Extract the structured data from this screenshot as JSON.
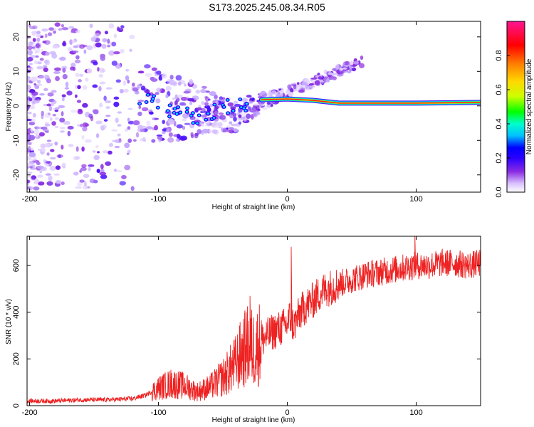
{
  "figure_title": "S173.2025.245.08.34.R05",
  "chart_data": [
    {
      "id": "spectrogram",
      "type": "heatmap",
      "xlabel": "Height of straight line (km)",
      "ylabel": "Frequency (Hz)",
      "xlim": [
        -202,
        150
      ],
      "ylim": [
        -25,
        24.5
      ],
      "xticks": [
        -200,
        -100,
        0,
        100
      ],
      "yticks": [
        -20,
        -10,
        0,
        10,
        20
      ],
      "grid": false,
      "ridge": {
        "description_points_x": [
          -20,
          0,
          20,
          40,
          60,
          100,
          150
        ],
        "description_points_y": [
          1.8,
          2.0,
          1.6,
          0.8,
          0.8,
          0.8,
          1.0
        ]
      },
      "colorbar": {
        "label": "Normalized spectral amplitude",
        "range": [
          0,
          1
        ],
        "ticks": [
          "0.0",
          "0.2",
          "0.4",
          "0.6",
          "0.8"
        ],
        "tick_values": [
          0.0,
          0.2,
          0.4,
          0.6,
          0.8
        ],
        "colors": [
          "#ffffff",
          "#d9c2ff",
          "#8a2be2",
          "#2a00ff",
          "#0000ff",
          "#00bfff",
          "#00ffcc",
          "#00ff00",
          "#ccff00",
          "#ffd700",
          "#ff7f00",
          "#ff0000",
          "#ff1493"
        ]
      }
    },
    {
      "id": "snr",
      "type": "line",
      "xlabel": "Height of straight line (km)",
      "ylabel": "SNR (10 * v/v)",
      "xlim": [
        -202,
        150
      ],
      "ylim": [
        0,
        725
      ],
      "xticks": [
        -200,
        -100,
        0,
        100
      ],
      "yticks": [
        0,
        200,
        400,
        600
      ],
      "grid": false,
      "series": [
        {
          "name": "SNR",
          "color": "#ee2222",
          "x": [
            -202,
            -180,
            -160,
            -140,
            -120,
            -110,
            -100,
            -90,
            -80,
            -70,
            -60,
            -50,
            -40,
            -35,
            -30,
            -25,
            -20,
            -15,
            -10,
            -5,
            0,
            2,
            5,
            10,
            15,
            20,
            25,
            30,
            40,
            50,
            60,
            70,
            80,
            90,
            100,
            110,
            120,
            130,
            140,
            150
          ],
          "y": [
            20,
            20,
            25,
            25,
            30,
            45,
            75,
            95,
            85,
            60,
            80,
            120,
            180,
            230,
            260,
            240,
            280,
            300,
            320,
            330,
            350,
            380,
            340,
            400,
            430,
            450,
            480,
            500,
            520,
            540,
            560,
            570,
            580,
            590,
            600,
            600,
            610,
            610,
            600,
            610
          ]
        }
      ],
      "annotations": {
        "spikes": [
          {
            "x": -29,
            "y": 470
          },
          {
            "x": 3,
            "y": 680
          },
          {
            "x": 99,
            "y": 730
          }
        ]
      }
    }
  ]
}
